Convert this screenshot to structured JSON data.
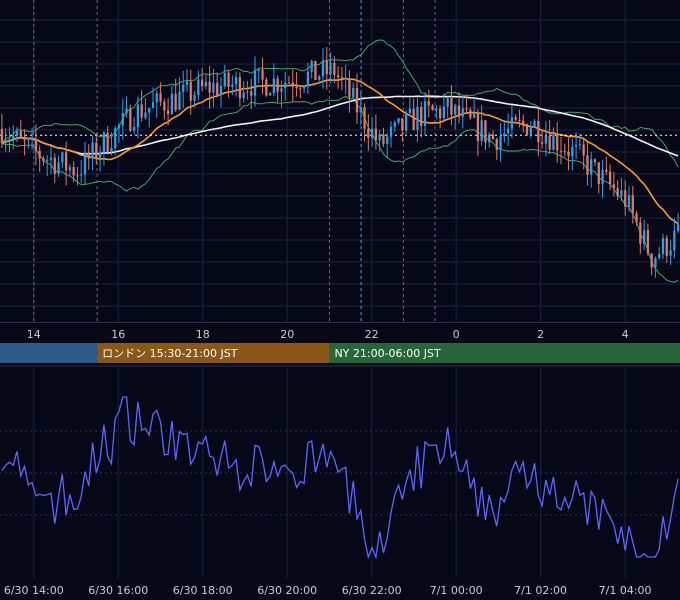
{
  "chart_data": [
    {
      "type": "candlestick",
      "title": "",
      "x_axis": {
        "tick_labels": [
          "14",
          "16",
          "18",
          "20",
          "22",
          "0",
          "2",
          "4"
        ],
        "tick_hours": [
          14,
          16,
          18,
          20,
          22,
          24,
          26,
          28
        ]
      },
      "x_range_hours": [
        13.2,
        29.3
      ],
      "y_range": [
        0,
        100
      ],
      "grid": true,
      "series": [
        {
          "kind": "candles",
          "count": 180
        },
        {
          "kind": "moving_average",
          "color": "#ff9a1f"
        },
        {
          "kind": "moving_average",
          "color": "#f2f2f2"
        },
        {
          "kind": "bollinger_upper",
          "color": "#3aa860"
        },
        {
          "kind": "bollinger_lower",
          "color": "#3aa860"
        }
      ],
      "reference_line": {
        "style": "dotted",
        "color": "#ffffff",
        "y": 58
      },
      "vertical_markers": [
        {
          "hour": 14.0,
          "color": "#5f6b85"
        },
        {
          "hour": 15.5,
          "color": "#5f6b85"
        },
        {
          "hour": 21.0,
          "color": "#5f6b85"
        },
        {
          "hour": 21.75,
          "color": "#4aa0ff"
        },
        {
          "hour": 22.75,
          "color": "#5f6b85"
        },
        {
          "hour": 23.5,
          "color": "#5f6b85"
        }
      ],
      "sessions": [
        {
          "label": "",
          "start_hour": 13.2,
          "end_hour": 15.5,
          "color": "#2d5a8c"
        },
        {
          "label": "ロンドン 15:30-21:00 JST",
          "start_hour": 15.5,
          "end_hour": 21.0,
          "color": "#8a5716"
        },
        {
          "label": "NY 21:00-06:00 JST",
          "start_hour": 21.0,
          "end_hour": 29.3,
          "color": "#266638"
        }
      ],
      "colors": {
        "up": "#2e9fe8",
        "down": "#e07a6a"
      }
    },
    {
      "type": "line",
      "title": "",
      "x_axis": {
        "tick_labels": [
          "6/30 14:00",
          "6/30 16:00",
          "6/30 18:00",
          "6/30 20:00",
          "6/30 22:00",
          "7/1 00:00",
          "7/1 02:00",
          "7/1 04:00"
        ],
        "tick_hours": [
          14,
          16,
          18,
          20,
          22,
          24,
          26,
          28
        ]
      },
      "x_range_hours": [
        13.2,
        29.3
      ],
      "y_range": [
        0,
        100
      ],
      "grid_levels": [
        30,
        50,
        70
      ],
      "series": [
        {
          "kind": "oscillator",
          "color": "#5a67ff"
        }
      ]
    }
  ],
  "colors": {
    "background": "#060818",
    "grid": "#1a2140",
    "separator": "#2a3150",
    "ma_fast": "#ff9a1f",
    "ma_slow": "#f2f2f2",
    "band": "#3aa860",
    "oscillator": "#5a67ff"
  }
}
